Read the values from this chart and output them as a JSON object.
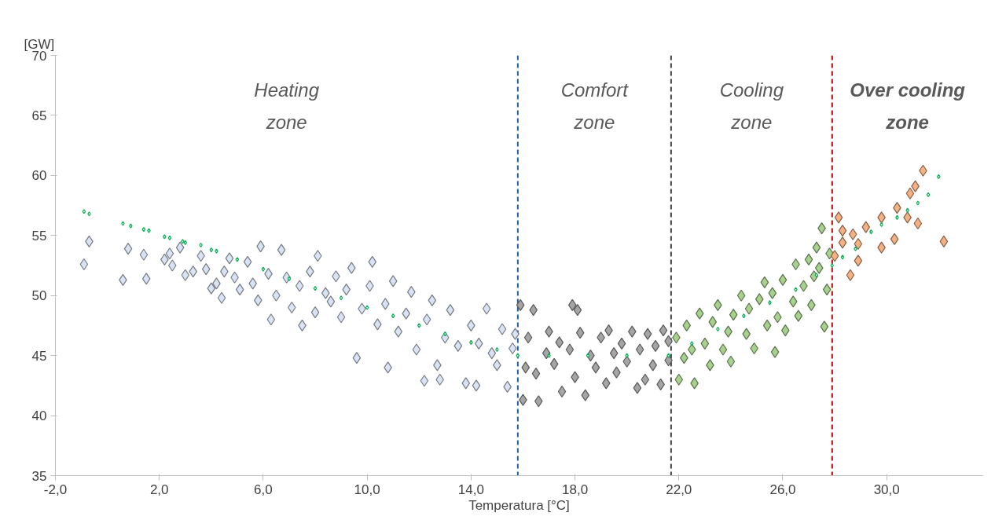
{
  "chart_data": {
    "type": "scatter",
    "xlabel": "Temperatura [°C]",
    "ylabel": "[GW]",
    "xlim": [
      -2,
      33.7
    ],
    "ylim": [
      35,
      70
    ],
    "xticks": [
      {
        "value": -2,
        "label": "-2,0"
      },
      {
        "value": 2,
        "label": "2,0"
      },
      {
        "value": 6,
        "label": "6,0"
      },
      {
        "value": 10,
        "label": "10,0"
      },
      {
        "value": 14,
        "label": "14,0"
      },
      {
        "value": 18,
        "label": "18,0"
      },
      {
        "value": 22,
        "label": "22,0"
      },
      {
        "value": 26,
        "label": "26,0"
      },
      {
        "value": 30,
        "label": "30,0"
      }
    ],
    "yticks": [
      35,
      40,
      45,
      50,
      55,
      60,
      65,
      70
    ],
    "marker": "diamond",
    "grid": false,
    "annotations": [
      "Heating\nzone",
      "Comfort\nzone",
      "Cooling\nzone",
      "Over cooling\nzone"
    ],
    "ref_lines": [
      {
        "axis": "x",
        "value": 15.8,
        "color": "#1f5fa8",
        "line_style": "dashed"
      },
      {
        "axis": "x",
        "value": 21.7,
        "color": "#404040",
        "line_style": "dashed"
      },
      {
        "axis": "x",
        "value": 27.9,
        "color": "#c00000",
        "line_style": "dashed"
      }
    ],
    "series": [
      {
        "color": "#dae3f3",
        "x": [
          -0.9,
          -0.7,
          0.6,
          0.8,
          1.4,
          1.5,
          2.2,
          2.4,
          2.5,
          2.8,
          3.0,
          3.3,
          3.6,
          3.8,
          4.0,
          4.2,
          4.4,
          4.5,
          4.7,
          4.9,
          5.1,
          5.4,
          5.6,
          5.8,
          5.9,
          6.2,
          6.3,
          6.5,
          6.7,
          6.9,
          7.1,
          7.4,
          7.5,
          7.8,
          8.0,
          8.1,
          8.4,
          8.6,
          8.8,
          9.0,
          9.2,
          9.4,
          9.6,
          9.8,
          10.1,
          10.2,
          10.4,
          10.7,
          10.8,
          11.0,
          11.2,
          11.5,
          11.7,
          11.9,
          12.2,
          12.3,
          12.5,
          12.7,
          12.8,
          13.0,
          13.2,
          13.5,
          13.8,
          14.0,
          14.2,
          14.3,
          14.6,
          14.8,
          15.0,
          15.2,
          15.4,
          15.6,
          15.7
        ],
        "values": [
          52.6,
          54.5,
          51.3,
          53.9,
          53.4,
          51.4,
          53.0,
          53.5,
          52.5,
          54.0,
          51.7,
          52.0,
          53.3,
          52.2,
          50.6,
          51.0,
          49.8,
          52.0,
          53.1,
          51.5,
          50.5,
          52.8,
          51.0,
          49.6,
          54.1,
          51.8,
          48.0,
          50.0,
          53.8,
          51.5,
          49.0,
          50.8,
          47.5,
          52.0,
          48.6,
          53.3,
          50.2,
          49.5,
          51.6,
          48.2,
          50.5,
          52.3,
          44.8,
          48.9,
          50.8,
          52.8,
          47.6,
          49.3,
          44.0,
          51.2,
          47.0,
          48.5,
          50.3,
          45.5,
          42.9,
          48.0,
          49.6,
          44.2,
          43.0,
          46.5,
          48.8,
          45.8,
          42.7,
          47.5,
          42.5,
          46.0,
          48.9,
          45.2,
          44.2,
          47.2,
          42.4,
          45.6,
          46.8
        ]
      },
      {
        "color": "#a5a5a5",
        "x": [
          15.9,
          16.0,
          16.1,
          16.2,
          16.4,
          16.5,
          16.6,
          16.9,
          17.0,
          17.2,
          17.4,
          17.5,
          17.8,
          17.9,
          18.0,
          18.1,
          18.2,
          18.4,
          18.6,
          18.8,
          19.0,
          19.2,
          19.3,
          19.5,
          19.6,
          19.8,
          20.0,
          20.2,
          20.4,
          20.5,
          20.7,
          20.8,
          21.0,
          21.1,
          21.3,
          21.4,
          21.6,
          21.6
        ],
        "values": [
          49.2,
          41.3,
          44.0,
          46.5,
          48.8,
          43.5,
          41.2,
          45.2,
          47.0,
          44.3,
          46.1,
          42.0,
          45.5,
          49.2,
          43.2,
          48.8,
          46.9,
          41.7,
          45.0,
          44.0,
          46.5,
          42.7,
          47.1,
          45.2,
          43.6,
          46.0,
          44.5,
          47.0,
          42.3,
          45.5,
          43.0,
          46.8,
          44.2,
          45.8,
          42.6,
          47.1,
          44.6,
          46.2
        ]
      },
      {
        "color": "#a9d18e",
        "x": [
          21.9,
          22.0,
          22.2,
          22.3,
          22.5,
          22.6,
          22.8,
          23.0,
          23.2,
          23.3,
          23.5,
          23.7,
          23.9,
          24.0,
          24.1,
          24.4,
          24.6,
          24.7,
          24.9,
          25.1,
          25.3,
          25.4,
          25.6,
          25.7,
          25.8,
          26.0,
          26.1,
          26.4,
          26.5,
          26.6,
          26.8,
          27.0,
          27.1,
          27.2,
          27.3,
          27.4,
          27.5,
          27.6,
          27.7,
          27.8
        ],
        "values": [
          46.5,
          43.0,
          44.8,
          47.5,
          45.5,
          42.7,
          48.5,
          46.0,
          44.2,
          47.8,
          49.2,
          45.5,
          47.0,
          44.5,
          48.4,
          50.0,
          46.8,
          48.9,
          45.6,
          49.7,
          51.1,
          47.5,
          50.2,
          45.3,
          48.2,
          51.3,
          47.1,
          49.5,
          52.6,
          48.3,
          50.8,
          53.0,
          49.2,
          51.6,
          54.0,
          52.3,
          55.6,
          47.4,
          50.5,
          53.5
        ]
      },
      {
        "color": "#f4b183",
        "x": [
          28.0,
          28.15,
          28.3,
          28.3,
          28.6,
          28.7,
          28.9,
          28.9,
          29.2,
          29.8,
          29.8,
          30.3,
          30.4,
          30.8,
          30.9,
          31.1,
          31.2,
          31.4,
          32.2
        ],
        "values": [
          53.3,
          56.5,
          55.4,
          54.4,
          51.7,
          55.1,
          52.9,
          54.3,
          55.7,
          56.5,
          54.0,
          54.7,
          57.3,
          56.5,
          58.5,
          59.1,
          56.0,
          60.4,
          54.5
        ]
      },
      {
        "color": "#00b050",
        "x": [
          -0.9,
          -0.7,
          0.6,
          0.9,
          1.4,
          1.6,
          2.2,
          2.4,
          2.9,
          3.0,
          3.6,
          4.0,
          4.2,
          5.0,
          6.0,
          7.0,
          8.0,
          9.0,
          10.0,
          11.0,
          12.0,
          13.0,
          14.0,
          15.0,
          15.8,
          17.0,
          18.5,
          20.0,
          21.6,
          22.5,
          23.5,
          24.5,
          25.5,
          26.5,
          27.3,
          27.9,
          28.3,
          28.8,
          29.4,
          29.8,
          30.4,
          30.8,
          31.2,
          31.6,
          32.0
        ],
        "values": [
          57.0,
          56.8,
          56.0,
          55.8,
          55.5,
          55.4,
          54.9,
          54.8,
          54.5,
          54.4,
          54.2,
          53.8,
          53.7,
          53.0,
          52.2,
          51.4,
          50.6,
          49.8,
          49.0,
          48.3,
          47.5,
          46.8,
          46.1,
          45.5,
          45.0,
          45.0,
          45.0,
          45.0,
          45.0,
          46.0,
          47.2,
          48.3,
          49.4,
          50.5,
          51.7,
          52.5,
          53.2,
          53.9,
          55.3,
          55.9,
          56.5,
          57.1,
          57.7,
          58.4,
          59.9
        ]
      }
    ]
  }
}
